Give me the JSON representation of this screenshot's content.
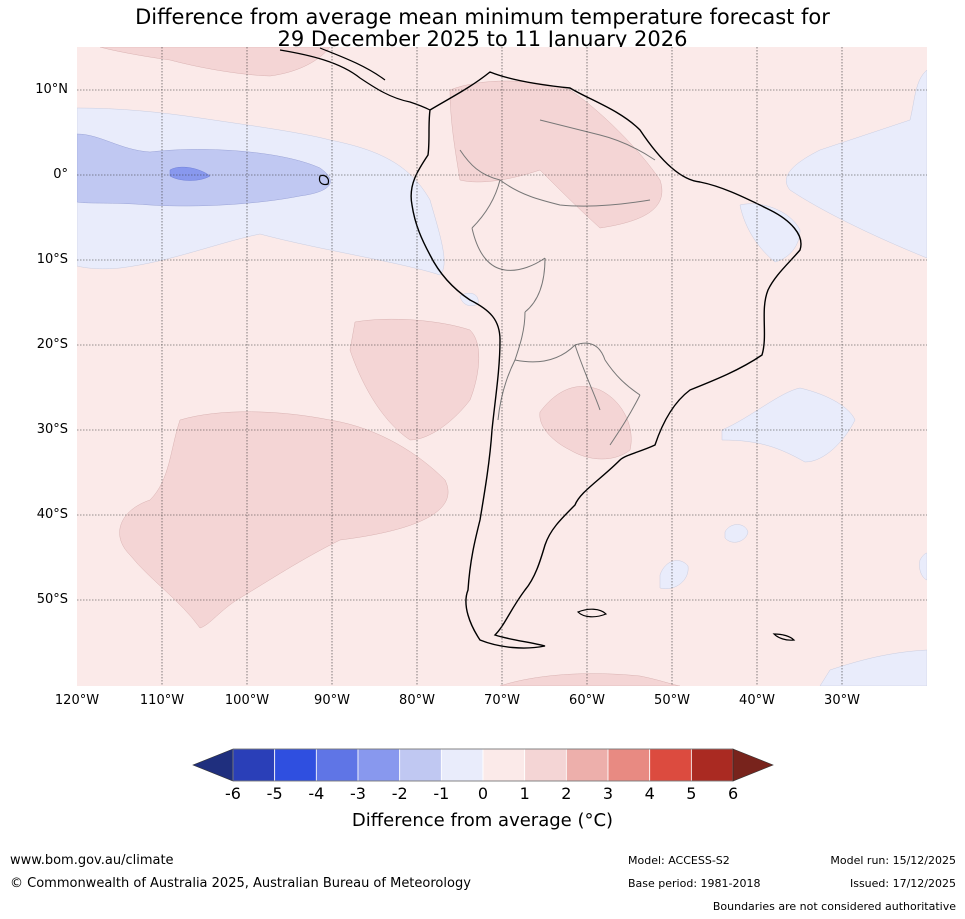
{
  "title": {
    "line1": "Difference from average mean minimum temperature forecast for",
    "line2": "29 December 2025 to 11 January 2026"
  },
  "map": {
    "region": "South America",
    "lat_labels": [
      "10°N",
      "0°",
      "10°S",
      "20°S",
      "30°S",
      "40°S",
      "50°S"
    ],
    "lon_labels": [
      "120°W",
      "110°W",
      "100°W",
      "90°W",
      "80°W",
      "70°W",
      "60°W",
      "50°W",
      "40°W",
      "30°W"
    ],
    "background_color": "#fbeae9"
  },
  "colorbar": {
    "ticks": [
      "-6",
      "-5",
      "-4",
      "-3",
      "-2",
      "-1",
      "0",
      "1",
      "2",
      "3",
      "4",
      "5",
      "6"
    ],
    "colors": [
      "#1f2f7e",
      "#2a3fb8",
      "#2f4fe0",
      "#5f75e6",
      "#8898ee",
      "#c0c8f2",
      "#e9ecfb",
      "#fbeae9",
      "#f4d5d5",
      "#edafab",
      "#e88a82",
      "#dc4b3f",
      "#aa2a22",
      "#78231c"
    ],
    "title": "Difference from average (°C)"
  },
  "footer": {
    "website": "www.bom.gov.au/climate",
    "copyright": "© Commonwealth of Australia 2025, Australian Bureau of Meteorology",
    "model": "Model: ACCESS-S2",
    "base_period": "Base period: 1981-2018",
    "model_run": "Model run: 15/12/2025",
    "issued": "Issued: 17/12/2025",
    "disclaimer": "Boundaries are not considered authoritative"
  }
}
